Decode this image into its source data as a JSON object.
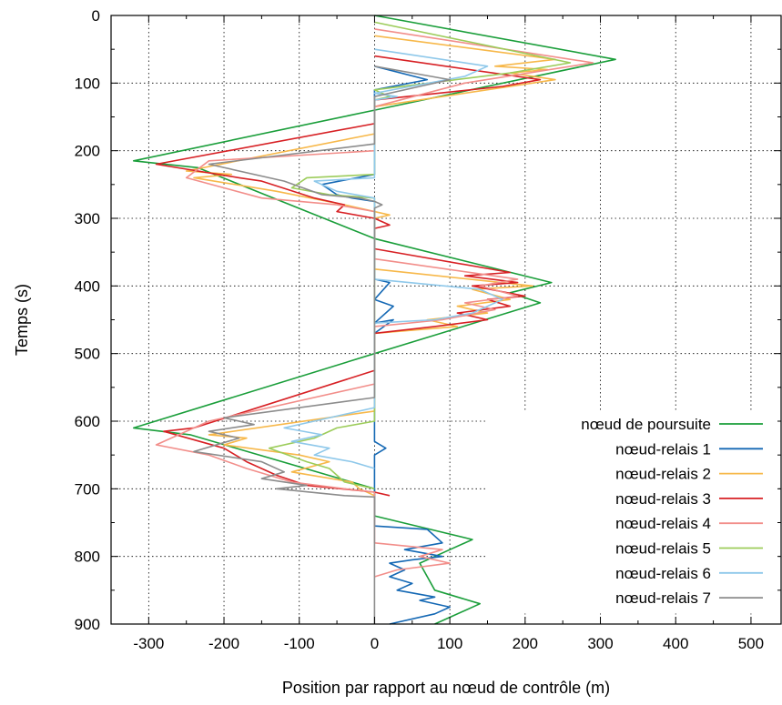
{
  "chart_data": {
    "type": "line",
    "xlabel": "Position par rapport au nœud de contrôle (m)",
    "ylabel": "Temps (s)",
    "xlim": [
      -350,
      540
    ],
    "ylim": [
      0,
      900
    ],
    "y_inverted": true,
    "grid": true,
    "legend_position": "bottom-right",
    "xticks": [
      -300,
      -200,
      -100,
      0,
      100,
      200,
      300,
      400,
      500
    ],
    "yticks": [
      0,
      100,
      200,
      300,
      400,
      500,
      600,
      700,
      800,
      900
    ],
    "series": [
      {
        "name": "nœud de poursuite",
        "color": "#1a9e3a",
        "points": [
          [
            0,
            0
          ],
          [
            320,
            65
          ],
          [
            0,
            140
          ],
          [
            -320,
            215
          ],
          [
            -235,
            225
          ],
          [
            0,
            330
          ],
          [
            235,
            395
          ],
          [
            180,
            410
          ],
          [
            220,
            425
          ],
          [
            0,
            500
          ],
          [
            -320,
            610
          ],
          [
            -245,
            620
          ],
          [
            0,
            700
          ],
          [
            0,
            740
          ],
          [
            130,
            775
          ],
          [
            80,
            800
          ],
          [
            60,
            810
          ],
          [
            80,
            850
          ],
          [
            140,
            870
          ],
          [
            80,
            900
          ]
        ]
      },
      {
        "name": "nœud-relais 1",
        "color": "#1468b4",
        "points": [
          [
            0,
            75
          ],
          [
            70,
            95
          ],
          [
            0,
            110
          ],
          [
            0,
            235
          ],
          [
            -70,
            250
          ],
          [
            -50,
            265
          ],
          [
            -30,
            270
          ],
          [
            0,
            275
          ],
          [
            0,
            390
          ],
          [
            20,
            395
          ],
          [
            0,
            420
          ],
          [
            25,
            430
          ],
          [
            0,
            455
          ],
          [
            25,
            450
          ],
          [
            0,
            470
          ],
          [
            0,
            630
          ],
          [
            15,
            640
          ],
          [
            0,
            650
          ],
          [
            0,
            755
          ],
          [
            70,
            760
          ],
          [
            90,
            780
          ],
          [
            40,
            790
          ],
          [
            90,
            800
          ],
          [
            50,
            805
          ],
          [
            20,
            810
          ],
          [
            40,
            820
          ],
          [
            20,
            830
          ],
          [
            50,
            840
          ],
          [
            30,
            850
          ],
          [
            80,
            860
          ],
          [
            60,
            865
          ],
          [
            100,
            875
          ],
          [
            80,
            885
          ],
          [
            20,
            900
          ]
        ]
      },
      {
        "name": "nœud-relais 2",
        "color": "#f7b84a",
        "points": [
          [
            0,
            30
          ],
          [
            240,
            65
          ],
          [
            160,
            75
          ],
          [
            230,
            80
          ],
          [
            180,
            85
          ],
          [
            240,
            95
          ],
          [
            0,
            135
          ],
          [
            0,
            175
          ],
          [
            -250,
            230
          ],
          [
            -190,
            235
          ],
          [
            -240,
            240
          ],
          [
            -130,
            260
          ],
          [
            -40,
            280
          ],
          [
            20,
            295
          ],
          [
            0,
            300
          ],
          [
            0,
            375
          ],
          [
            210,
            400
          ],
          [
            130,
            405
          ],
          [
            180,
            420
          ],
          [
            110,
            430
          ],
          [
            150,
            440
          ],
          [
            70,
            450
          ],
          [
            110,
            460
          ],
          [
            0,
            470
          ],
          [
            0,
            585
          ],
          [
            -220,
            620
          ],
          [
            -170,
            625
          ],
          [
            -200,
            635
          ],
          [
            -100,
            650
          ],
          [
            -60,
            660
          ],
          [
            -110,
            675
          ],
          [
            -30,
            690
          ],
          [
            -20,
            700
          ],
          [
            0,
            710
          ]
        ]
      },
      {
        "name": "nœud-relais 3",
        "color": "#d72024",
        "points": [
          [
            0,
            60
          ],
          [
            220,
            95
          ],
          [
            170,
            105
          ],
          [
            0,
            125
          ],
          [
            0,
            160
          ],
          [
            -290,
            220
          ],
          [
            -180,
            240
          ],
          [
            -150,
            245
          ],
          [
            -80,
            270
          ],
          [
            -40,
            280
          ],
          [
            -50,
            290
          ],
          [
            0,
            300
          ],
          [
            20,
            310
          ],
          [
            0,
            315
          ],
          [
            0,
            345
          ],
          [
            180,
            380
          ],
          [
            120,
            385
          ],
          [
            190,
            395
          ],
          [
            130,
            400
          ],
          [
            200,
            415
          ],
          [
            150,
            420
          ],
          [
            180,
            430
          ],
          [
            110,
            440
          ],
          [
            150,
            450
          ],
          [
            80,
            460
          ],
          [
            0,
            470
          ],
          [
            0,
            485
          ],
          [
            0,
            525
          ],
          [
            -240,
            610
          ],
          [
            -280,
            615
          ],
          [
            -200,
            640
          ],
          [
            -170,
            660
          ],
          [
            -130,
            680
          ],
          [
            -90,
            695
          ],
          [
            0,
            705
          ],
          [
            20,
            710
          ]
        ]
      },
      {
        "name": "nœud-relais 4",
        "color": "#f28e8a",
        "points": [
          [
            0,
            20
          ],
          [
            290,
            70
          ],
          [
            120,
            100
          ],
          [
            0,
            135
          ],
          [
            0,
            200
          ],
          [
            -220,
            215
          ],
          [
            -250,
            240
          ],
          [
            -150,
            270
          ],
          [
            -50,
            280
          ],
          [
            0,
            290
          ],
          [
            0,
            360
          ],
          [
            190,
            390
          ],
          [
            140,
            400
          ],
          [
            190,
            415
          ],
          [
            120,
            425
          ],
          [
            160,
            435
          ],
          [
            90,
            450
          ],
          [
            0,
            460
          ],
          [
            0,
            545
          ],
          [
            -220,
            600
          ],
          [
            -290,
            635
          ],
          [
            -220,
            650
          ],
          [
            -170,
            670
          ],
          [
            -110,
            690
          ],
          [
            -40,
            700
          ],
          [
            0,
            705
          ],
          [
            0,
            780
          ],
          [
            90,
            790
          ],
          [
            60,
            800
          ],
          [
            100,
            810
          ],
          [
            30,
            820
          ],
          [
            0,
            830
          ]
        ]
      },
      {
        "name": "nœud-relais 5",
        "color": "#9ccc5a",
        "points": [
          [
            0,
            10
          ],
          [
            260,
            70
          ],
          [
            180,
            85
          ],
          [
            0,
            110
          ],
          [
            20,
            120
          ],
          [
            0,
            125
          ],
          [
            0,
            235
          ],
          [
            -90,
            240
          ],
          [
            -110,
            255
          ],
          [
            -60,
            265
          ],
          [
            0,
            270
          ],
          [
            0,
            600
          ],
          [
            -50,
            610
          ],
          [
            -80,
            625
          ],
          [
            -140,
            640
          ],
          [
            -90,
            660
          ],
          [
            -60,
            670
          ],
          [
            -40,
            690
          ],
          [
            0,
            700
          ]
        ]
      },
      {
        "name": "nœud-relais 6",
        "color": "#8ec8ea",
        "points": [
          [
            0,
            50
          ],
          [
            150,
            75
          ],
          [
            120,
            90
          ],
          [
            0,
            115
          ],
          [
            30,
            120
          ],
          [
            0,
            125
          ],
          [
            0,
            240
          ],
          [
            -80,
            245
          ],
          [
            -50,
            260
          ],
          [
            0,
            270
          ],
          [
            0,
            390
          ],
          [
            140,
            405
          ],
          [
            170,
            420
          ],
          [
            130,
            440
          ],
          [
            80,
            450
          ],
          [
            0,
            455
          ],
          [
            0,
            580
          ],
          [
            -120,
            610
          ],
          [
            -70,
            620
          ],
          [
            -110,
            630
          ],
          [
            -60,
            640
          ],
          [
            -80,
            650
          ],
          [
            -30,
            660
          ],
          [
            0,
            670
          ]
        ]
      },
      {
        "name": "nœud-relais 7",
        "color": "#8c8c8c",
        "points": [
          [
            0,
            75
          ],
          [
            100,
            95
          ],
          [
            60,
            105
          ],
          [
            0,
            120
          ],
          [
            0,
            190
          ],
          [
            -220,
            220
          ],
          [
            -120,
            245
          ],
          [
            -70,
            265
          ],
          [
            -20,
            270
          ],
          [
            0,
            275
          ],
          [
            10,
            280
          ],
          [
            0,
            285
          ],
          [
            0,
            565
          ],
          [
            -200,
            595
          ],
          [
            -160,
            605
          ],
          [
            -220,
            615
          ],
          [
            -180,
            625
          ],
          [
            -240,
            645
          ],
          [
            -150,
            660
          ],
          [
            -120,
            675
          ],
          [
            -150,
            685
          ],
          [
            -90,
            695
          ],
          [
            -130,
            700
          ],
          [
            -40,
            710
          ],
          [
            0,
            712
          ],
          [
            0,
            900
          ]
        ]
      }
    ]
  }
}
